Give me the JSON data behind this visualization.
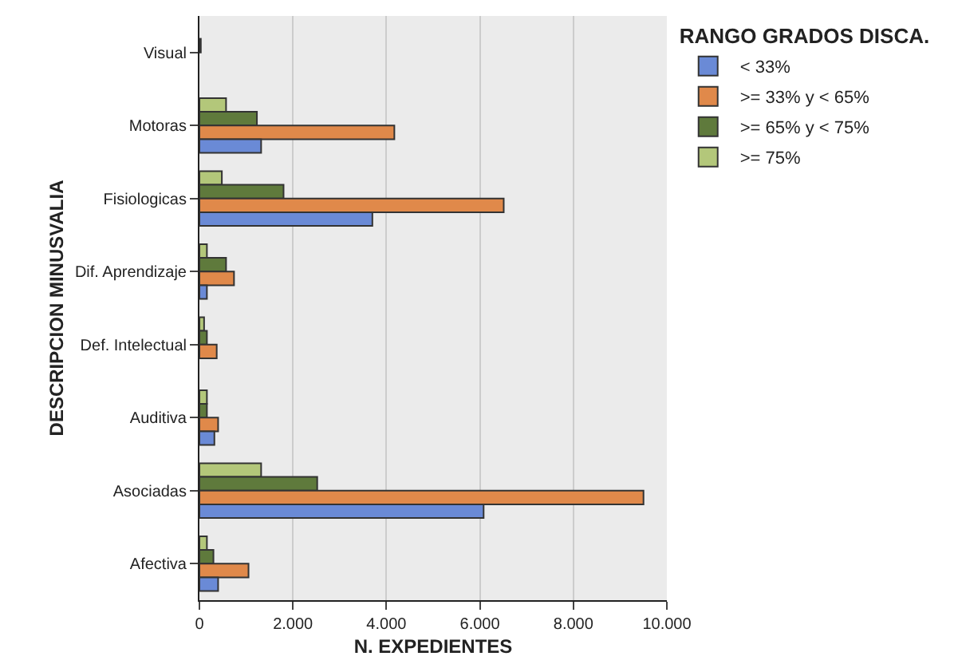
{
  "chart_data": {
    "type": "bar",
    "orientation": "horizontal",
    "ylabel": "DESCRIPCION MINUSVALIA",
    "xlabel": "N. EXPEDIENTES",
    "legend_title": "RANGO GRADOS DISCA.",
    "categories": [
      "Visual",
      "Motoras",
      "Fisiologicas",
      "Dif. Aprendizaje",
      "Def. Intelectual",
      "Auditiva",
      "Asociadas",
      "Afectiva"
    ],
    "series": [
      {
        "name": "< 33%",
        "color": "#6a8ad6",
        "values": [
          null,
          1320,
          3700,
          160,
          null,
          320,
          6080,
          400
        ]
      },
      {
        "name": ">= 33% y < 65%",
        "color": "#e0894a",
        "values": [
          null,
          4170,
          6510,
          740,
          370,
          400,
          9500,
          1050
        ]
      },
      {
        "name": ">= 65% y < 75%",
        "color": "#5f7a3c",
        "values": [
          30,
          1230,
          1800,
          570,
          160,
          160,
          2520,
          300
        ]
      },
      {
        "name": ">= 75%",
        "color": "#b3c77a",
        "values": [
          null,
          570,
          480,
          160,
          100,
          160,
          1320,
          160
        ]
      }
    ],
    "xlim": [
      0,
      10000
    ],
    "xticks": [
      {
        "value": 0,
        "label": "0"
      },
      {
        "value": 2000,
        "label": "2.000"
      },
      {
        "value": 4000,
        "label": "4.000"
      },
      {
        "value": 6000,
        "label": "6.000"
      },
      {
        "value": 8000,
        "label": "8.000"
      },
      {
        "value": 10000,
        "label": "10.000"
      }
    ],
    "grid": "x",
    "legend": "top right"
  }
}
